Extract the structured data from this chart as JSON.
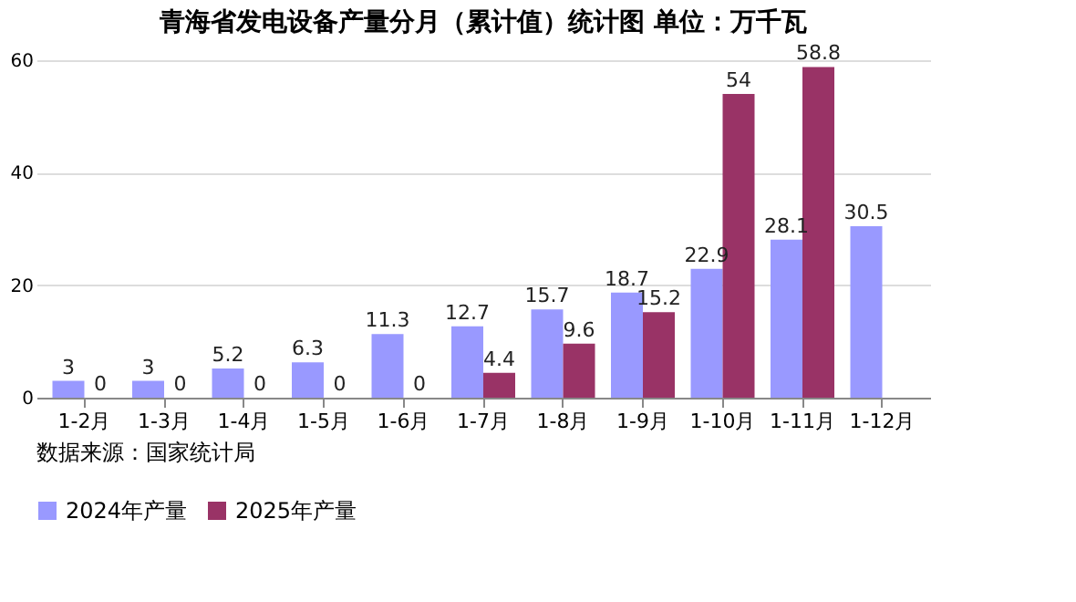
{
  "chart_data": {
    "type": "bar",
    "title": "青海省发电设备产量分月（累计值）统计图 单位：万千瓦",
    "categories": [
      "1-2月",
      "1-3月",
      "1-4月",
      "1-5月",
      "1-6月",
      "1-7月",
      "1-8月",
      "1-9月",
      "1-10月",
      "1-11月",
      "1-12月"
    ],
    "series": [
      {
        "name": "2024年产量",
        "color": "#9999ff",
        "values": [
          3,
          3,
          5.2,
          6.3,
          11.3,
          12.7,
          15.7,
          18.7,
          22.9,
          28.1,
          30.5
        ]
      },
      {
        "name": "2025年产量",
        "color": "#993366",
        "values": [
          0,
          0,
          0,
          0,
          0,
          4.4,
          9.6,
          15.2,
          54,
          58.8,
          null
        ]
      }
    ],
    "ylim": [
      0,
      60
    ],
    "yticks": [
      0,
      20,
      40,
      60
    ],
    "grid": "y",
    "legend": "bottom",
    "data_labels": true,
    "annotations": [
      "数据来源：国家统计局"
    ]
  }
}
